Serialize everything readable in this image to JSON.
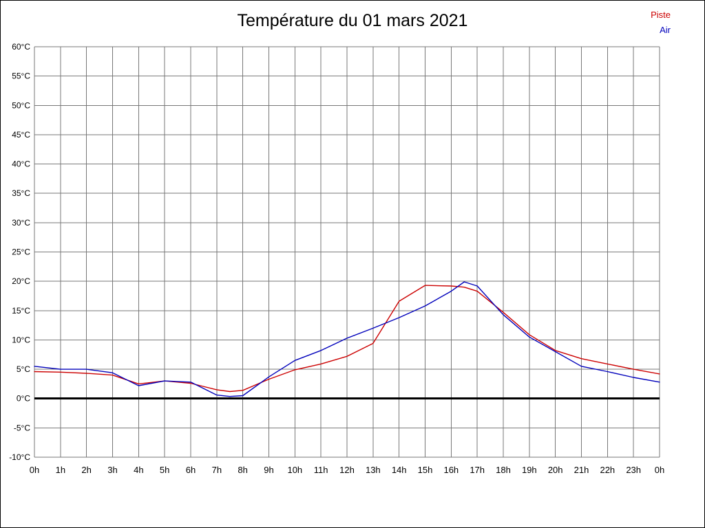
{
  "title": "Température du 01 mars 2021",
  "colors": {
    "grid": "#777777",
    "zero_line": "#000000",
    "piste": "#cc0000",
    "air": "#0000bb"
  },
  "chart_data": {
    "type": "line",
    "title": "Température du 01 mars 2021",
    "grid": true,
    "legend_position": "top-right",
    "x_axis": {
      "min": 0,
      "max": 24,
      "labels": [
        "0h",
        "1h",
        "2h",
        "3h",
        "4h",
        "5h",
        "6h",
        "7h",
        "8h",
        "9h",
        "10h",
        "11h",
        "12h",
        "13h",
        "14h",
        "15h",
        "16h",
        "17h",
        "18h",
        "19h",
        "20h",
        "21h",
        "22h",
        "23h",
        "0h"
      ]
    },
    "y_axis": {
      "min": -10,
      "max": 60,
      "step": 5,
      "labels": [
        "60°C",
        "55°C",
        "50°C",
        "45°C",
        "40°C",
        "35°C",
        "30°C",
        "25°C",
        "20°C",
        "15°C",
        "10°C",
        "5°C",
        "0°C",
        "-5°C",
        "-10°C"
      ]
    },
    "zero_line": {
      "value": 0,
      "color": "#000000",
      "width": 3
    },
    "series": [
      {
        "name": "Piste",
        "color": "#cc0000",
        "x": [
          0,
          1,
          2,
          3,
          4,
          5,
          6,
          7,
          7.5,
          8,
          9,
          10,
          11,
          12,
          13,
          14,
          15,
          16,
          16.5,
          17,
          18,
          19,
          20,
          21,
          22,
          23,
          24
        ],
        "values": [
          4.6,
          4.5,
          4.3,
          4.0,
          2.5,
          3.0,
          2.6,
          1.5,
          1.2,
          1.4,
          3.3,
          4.9,
          5.9,
          7.2,
          9.4,
          16.6,
          19.3,
          19.2,
          19.0,
          18.3,
          14.7,
          10.9,
          8.2,
          6.8,
          5.9,
          5.0,
          4.2
        ]
      },
      {
        "name": "Air",
        "color": "#0000bb",
        "x": [
          0,
          1,
          2,
          3,
          4,
          5,
          6,
          7,
          7.5,
          8,
          9,
          10,
          11,
          12,
          13,
          14,
          15,
          16,
          16.5,
          17,
          18,
          19,
          20,
          21,
          22,
          23,
          24
        ],
        "values": [
          5.5,
          5.0,
          5.0,
          4.4,
          2.2,
          3.0,
          2.8,
          0.6,
          0.35,
          0.5,
          3.7,
          6.5,
          8.2,
          10.3,
          12.0,
          13.8,
          15.8,
          18.3,
          19.9,
          19.2,
          14.3,
          10.5,
          8.0,
          5.5,
          4.6,
          3.6,
          2.8
        ]
      }
    ]
  }
}
